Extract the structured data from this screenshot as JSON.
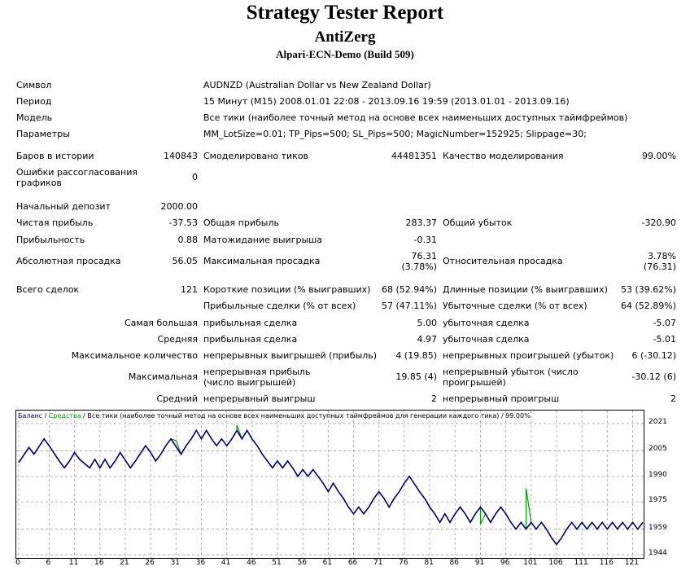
{
  "report": {
    "title": "Strategy Tester Report",
    "expert": "AntiZerg",
    "server": "Alpari-ECN-Demo (Build 509)"
  },
  "info": {
    "symbol_label": "Символ",
    "symbol_value": "AUDNZD (Australian Dollar vs New Zealand Dollar)",
    "period_label": "Период",
    "period_value": "15 Минут (M15) 2008.01.01 22:08 - 2013.09.16 19:59 (2013.01.01 - 2013.09.16)",
    "model_label": "Модель",
    "model_value": "Все тики (наиболее точный метод на основе всех наименьших доступных таймфреймов)",
    "params_label": "Параметры",
    "params_value": "MM_LotSize=0.01; TP_Pips=500; SL_Pips=500; MagicNumber=152925; Slippage=30;"
  },
  "stats": {
    "bars_label": "Баров в истории",
    "bars_value": "140843",
    "ticks_label": "Смоделировано тиков",
    "ticks_value": "44481351",
    "quality_label": "Качество моделирования",
    "quality_value": "99.00%",
    "errors_label": "Ошибки рассогласования графиков",
    "errors_value": "0",
    "deposit_label": "Начальный депозит",
    "deposit_value": "2000.00",
    "net_profit_label": "Чистая прибыль",
    "net_profit_value": "-37.53",
    "gross_profit_label": "Общая прибыль",
    "gross_profit_value": "283.37",
    "gross_loss_label": "Общий убыток",
    "gross_loss_value": "-320.90",
    "profit_factor_label": "Прибыльность",
    "profit_factor_value": "0.88",
    "expected_payoff_label": "Матожидание выигрыша",
    "expected_payoff_value": "-0.31",
    "abs_dd_label": "Абсолютная просадка",
    "abs_dd_value": "56.05",
    "max_dd_label": "Максимальная просадка",
    "max_dd_value_1": "76.31",
    "max_dd_value_2": "(3.78%)",
    "rel_dd_label": "Относительная просадка",
    "rel_dd_value_1": "3.78%",
    "rel_dd_value_2": "(76.31)",
    "total_trades_label": "Всего сделок",
    "total_trades_value": "121",
    "short_label": "Короткие позиции (% выигравших)",
    "short_value": "68 (52.94%)",
    "long_label": "Длинные позиции (% выигравших)",
    "long_value": "53 (39.62%)",
    "profit_trades_label": "Прибыльные сделки (% от всех)",
    "profit_trades_value": "57 (47.11%)",
    "loss_trades_label": "Убыточные сделки (% от всех)",
    "loss_trades_value": "64 (52.89%)",
    "largest_label": "Самая большая",
    "largest_profit_label": "прибыльная сделка",
    "largest_profit_value": "5.00",
    "largest_loss_label": "убыточная сделка",
    "largest_loss_value": "-5.07",
    "average_label": "Средняя",
    "average_profit_label": "прибыльная сделка",
    "average_profit_value": "4.97",
    "average_loss_label": "убыточная сделка",
    "average_loss_value": "-5.01",
    "max_count_label": "Максимальное количество",
    "max_consec_wins_label": "непрерывных выигрышей (прибыль)",
    "max_consec_wins_value": "4 (19.85)",
    "max_consec_losses_label": "непрерывных проигрышей (убыток)",
    "max_consec_losses_value": "6 (-30.12)",
    "maximal_label": "Максимальная",
    "maximal_profit_label": "непрерывная прибыль (число выигрышей)",
    "maximal_profit_value": "19.85 (4)",
    "maximal_loss_label": "непрерывный убыток (число проигрышей)",
    "maximal_loss_value": "-30.12 (6)",
    "avg_consec_label": "Средний",
    "avg_consec_wins_label": "непрерывный выигрыш",
    "avg_consec_wins_value": "2",
    "avg_consec_losses_label": "непрерывный проигрыш",
    "avg_consec_losses_value": "2"
  },
  "chart": {
    "legend_balance": "Баланс",
    "legend_sep1": " / ",
    "legend_equity": "Средства",
    "legend_rest": " / Все тики (наиболее точный метод на основе всех наименьших доступных таймфреймов для генерации каждого тика) / 99.00%",
    "balance_color": "#000080",
    "equity_color": "#00a000"
  },
  "chart_data": {
    "type": "line",
    "ylim": [
      1944,
      2021
    ],
    "xlim": [
      0,
      123
    ],
    "grid": true,
    "y_ticks": [
      "2021",
      "2005",
      "1990",
      "1975",
      "1959",
      "1944"
    ],
    "x_ticks": [
      "0",
      "6",
      "11",
      "16",
      "21",
      "26",
      "31",
      "36",
      "41",
      "46",
      "51",
      "56",
      "61",
      "66",
      "71",
      "76",
      "81",
      "86",
      "91",
      "96",
      "101",
      "106",
      "111",
      "116",
      "121"
    ],
    "series": [
      {
        "name": "Баланс",
        "x": [
          0,
          2,
          3,
          5,
          6,
          8,
          9,
          10,
          11,
          12,
          14,
          15,
          16,
          17,
          18,
          19,
          20,
          22,
          23,
          25,
          26,
          27,
          28,
          29,
          30,
          32,
          33,
          34,
          35,
          36,
          37,
          38,
          39,
          40,
          41,
          42,
          43,
          44,
          45,
          46,
          47,
          48,
          49,
          50,
          51,
          52,
          53,
          54,
          55,
          56,
          57,
          58,
          59,
          60,
          61,
          62,
          63,
          64,
          65,
          66,
          67,
          68,
          69,
          70,
          71,
          72,
          73,
          74,
          75,
          76,
          77,
          79,
          80,
          81,
          82,
          83,
          84,
          85,
          86,
          87,
          88,
          89,
          90,
          91,
          92,
          93,
          94,
          95,
          96,
          97,
          98,
          99,
          100,
          101,
          102,
          103,
          104,
          105,
          106,
          107,
          108,
          109,
          110,
          111,
          112,
          113,
          114,
          115,
          116,
          117,
          118,
          119,
          120,
          121,
          122,
          123
        ],
        "values": [
          1998,
          2007,
          2003,
          2012,
          2008,
          1999,
          1995,
          1999,
          2004,
          2000,
          1995,
          2000,
          1995,
          2000,
          1995,
          1999,
          2004,
          1995,
          1999,
          2008,
          2004,
          1999,
          2003,
          2008,
          2012,
          2003,
          2008,
          2012,
          2017,
          2012,
          2017,
          2012,
          2008,
          2012,
          2008,
          2012,
          2017,
          2012,
          2017,
          2012,
          2008,
          2003,
          1999,
          1995,
          1999,
          1995,
          1999,
          1995,
          1990,
          1994,
          1990,
          1994,
          1990,
          1986,
          1981,
          1986,
          1981,
          1977,
          1972,
          1968,
          1972,
          1968,
          1972,
          1977,
          1981,
          1977,
          1972,
          1977,
          1981,
          1986,
          1990,
          1981,
          1977,
          1972,
          1968,
          1963,
          1968,
          1963,
          1968,
          1972,
          1968,
          1963,
          1968,
          1972,
          1968,
          1963,
          1968,
          1972,
          1968,
          1963,
          1959,
          1963,
          1959,
          1963,
          1959,
          1963,
          1959,
          1954,
          1950,
          1954,
          1959,
          1963,
          1959,
          1963,
          1959,
          1963,
          1959,
          1963,
          1959,
          1963,
          1959,
          1963,
          1959,
          1963,
          1959,
          1963
        ]
      },
      {
        "name": "Средства",
        "x": [
          31,
          43,
          91,
          100
        ],
        "values": [
          2011,
          2020,
          1962,
          1983
        ]
      }
    ]
  }
}
